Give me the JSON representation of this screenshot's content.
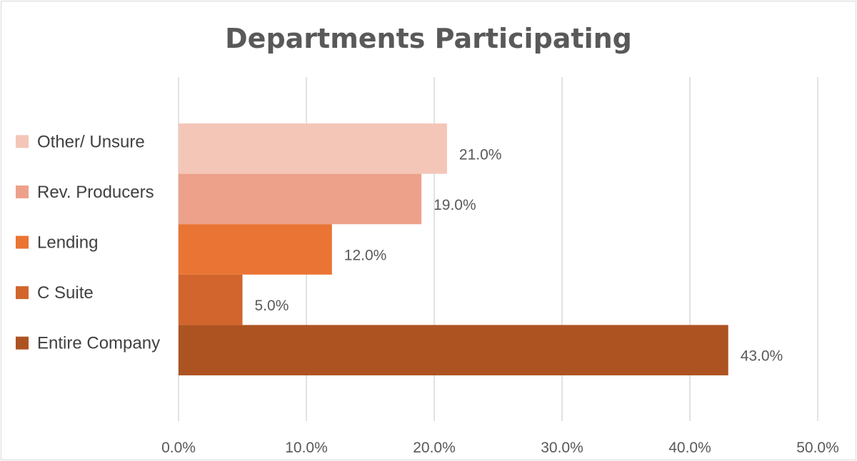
{
  "chart_data": {
    "type": "bar",
    "orientation": "horizontal",
    "title": "Departments Participating",
    "categories": [
      "Other/ Unsure",
      "Rev. Producers",
      "Lending",
      "C Suite",
      "Entire Company"
    ],
    "values": [
      21.0,
      19.0,
      12.0,
      5.0,
      43.0
    ],
    "value_labels": [
      "21.0%",
      "19.0%",
      "12.0%",
      "5.0%",
      "43.0%"
    ],
    "colors": [
      "#f4c6b8",
      "#eda18a",
      "#ea7433",
      "#d2652d",
      "#ad5322"
    ],
    "xlim": [
      0,
      50
    ],
    "xticks": [
      "0.0%",
      "10.0%",
      "20.0%",
      "30.0%",
      "40.0%",
      "50.0%"
    ],
    "grid": true,
    "legend": "left"
  }
}
